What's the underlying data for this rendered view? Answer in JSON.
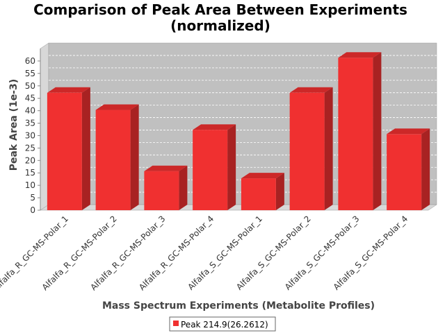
{
  "chart_data": {
    "type": "bar",
    "render": "3d",
    "title_lines": [
      "Comparison of Peak Area Between Experiments",
      "(normalized)"
    ],
    "xlabel": "Mass Spectrum Experiments (Metabolite Profiles)",
    "ylabel": "Peak Area (1e-3)",
    "ylim": [
      0,
      65
    ],
    "yticks": [
      0,
      5,
      10,
      15,
      20,
      25,
      30,
      35,
      40,
      45,
      50,
      55,
      60
    ],
    "grid": true,
    "legend_position": "bottom-center",
    "categories": [
      "Alfalfa_R_GC-MS-Polar_1",
      "Alfalfa_R_GC-MS-Polar_2",
      "Alfalfa_R_GC-MS-Polar_3",
      "Alfalfa_R_GC-MS-Polar_4",
      "Alfalfa_S_GC-MS-Polar_1",
      "Alfalfa_S_GC-MS-Polar_2",
      "Alfalfa_S_GC-MS-Polar_3",
      "Alfalfa_S_GC-MS-Polar_4"
    ],
    "series": [
      {
        "name": "Peak 214.9(26.2612)",
        "color": "#f03030",
        "values": [
          47.2,
          40.3,
          15.7,
          32.3,
          12.8,
          47.2,
          61.3,
          30.6
        ]
      }
    ],
    "colors": {
      "plot_background": "#c0c0c0",
      "plot_side": "#d8d8d8",
      "bar_front": "#f03030",
      "bar_top": "#cc2828",
      "bar_side": "#a82222"
    }
  }
}
